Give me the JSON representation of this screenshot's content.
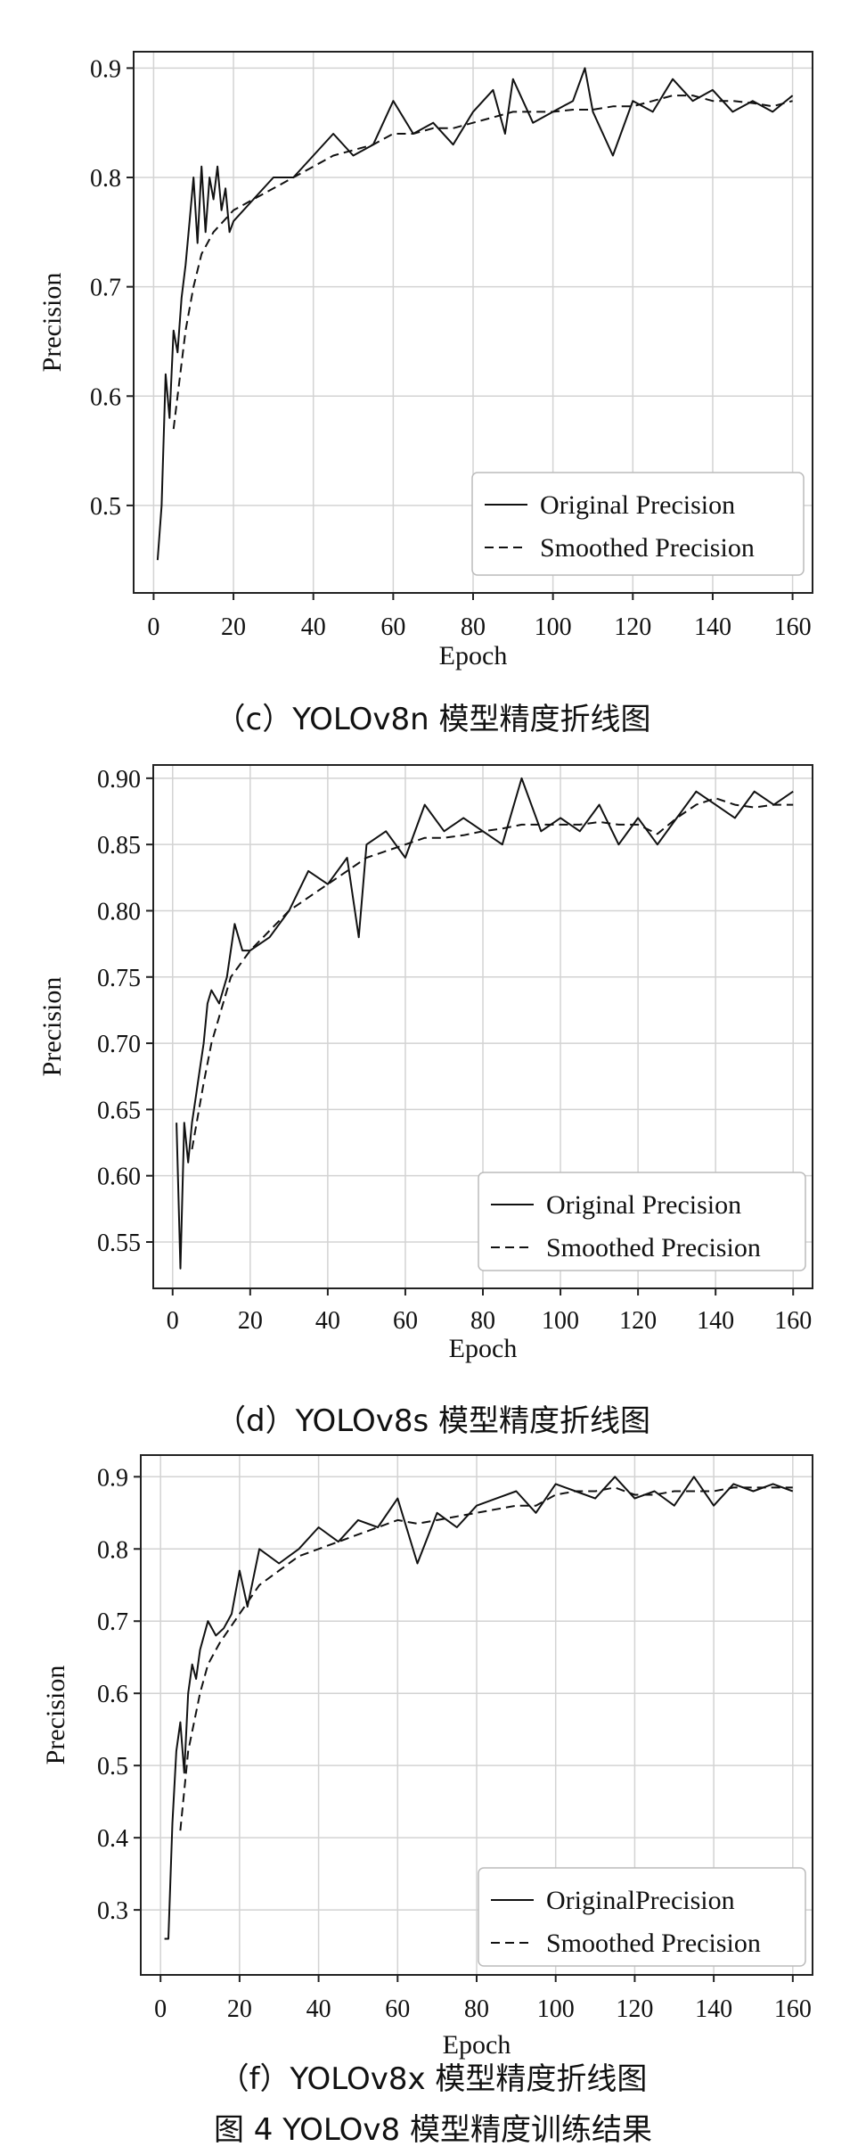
{
  "figure_caption": "图 4   YOLOv8 模型精度训练结果",
  "chart_data": [
    {
      "type": "line",
      "caption": "（c）YOLOv8n 模型精度折线图",
      "xlabel": "Epoch",
      "ylabel": "Precision",
      "xlim": [
        -5,
        165
      ],
      "ylim": [
        0.42,
        0.915
      ],
      "xticks": [
        0,
        20,
        40,
        60,
        80,
        100,
        120,
        140,
        160
      ],
      "yticks": [
        0.5,
        0.6,
        0.7,
        0.8,
        0.9
      ],
      "ytick_labels": [
        "0.5",
        "0.6",
        "0.7",
        "0.8",
        "0.9"
      ],
      "grid": true,
      "legend_position": "lower-right",
      "series": [
        {
          "name": "Original Precision",
          "style": "solid",
          "x": [
            1,
            2,
            3,
            4,
            5,
            6,
            7,
            8,
            9,
            10,
            11,
            12,
            13,
            14,
            15,
            16,
            17,
            18,
            19,
            20,
            25,
            30,
            35,
            40,
            45,
            50,
            55,
            60,
            65,
            70,
            75,
            80,
            85,
            88,
            90,
            95,
            100,
            105,
            108,
            110,
            115,
            120,
            125,
            130,
            135,
            140,
            145,
            150,
            155,
            160
          ],
          "y": [
            0.45,
            0.5,
            0.62,
            0.58,
            0.66,
            0.64,
            0.69,
            0.72,
            0.76,
            0.8,
            0.74,
            0.81,
            0.75,
            0.8,
            0.78,
            0.81,
            0.77,
            0.79,
            0.75,
            0.76,
            0.78,
            0.8,
            0.8,
            0.82,
            0.84,
            0.82,
            0.83,
            0.87,
            0.84,
            0.85,
            0.83,
            0.86,
            0.88,
            0.84,
            0.89,
            0.85,
            0.86,
            0.87,
            0.9,
            0.86,
            0.82,
            0.87,
            0.86,
            0.89,
            0.87,
            0.88,
            0.86,
            0.87,
            0.86,
            0.875
          ]
        },
        {
          "name": "Smoothed Precision",
          "style": "dashed",
          "x": [
            5,
            8,
            10,
            12,
            15,
            20,
            25,
            30,
            35,
            40,
            45,
            50,
            55,
            60,
            65,
            70,
            75,
            80,
            85,
            90,
            95,
            100,
            105,
            110,
            115,
            120,
            125,
            130,
            135,
            140,
            145,
            150,
            155,
            160
          ],
          "y": [
            0.57,
            0.66,
            0.7,
            0.73,
            0.75,
            0.77,
            0.78,
            0.79,
            0.8,
            0.81,
            0.82,
            0.825,
            0.83,
            0.84,
            0.84,
            0.845,
            0.845,
            0.85,
            0.855,
            0.86,
            0.86,
            0.86,
            0.862,
            0.862,
            0.865,
            0.865,
            0.87,
            0.875,
            0.875,
            0.87,
            0.87,
            0.868,
            0.865,
            0.87
          ]
        }
      ]
    },
    {
      "type": "line",
      "caption": "（d）YOLOv8s 模型精度折线图",
      "xlabel": "Epoch",
      "ylabel": "Precision",
      "xlim": [
        -5,
        165
      ],
      "ylim": [
        0.515,
        0.91
      ],
      "xticks": [
        0,
        20,
        40,
        60,
        80,
        100,
        120,
        140,
        160
      ],
      "yticks": [
        0.55,
        0.6,
        0.65,
        0.7,
        0.75,
        0.8,
        0.85,
        0.9
      ],
      "ytick_labels": [
        "0.55",
        "0.60",
        "0.65",
        "0.70",
        "0.75",
        "0.80",
        "0.85",
        "0.90"
      ],
      "grid": true,
      "legend_position": "lower-right",
      "series": [
        {
          "name": "Original Precision",
          "style": "solid",
          "x": [
            1,
            2,
            3,
            4,
            5,
            6,
            7,
            8,
            9,
            10,
            12,
            14,
            16,
            18,
            20,
            25,
            30,
            35,
            40,
            45,
            48,
            50,
            55,
            60,
            65,
            70,
            75,
            80,
            85,
            90,
            95,
            100,
            105,
            110,
            115,
            120,
            125,
            130,
            135,
            140,
            145,
            150,
            155,
            160
          ],
          "y": [
            0.64,
            0.53,
            0.64,
            0.61,
            0.64,
            0.66,
            0.68,
            0.7,
            0.73,
            0.74,
            0.73,
            0.75,
            0.79,
            0.77,
            0.77,
            0.78,
            0.8,
            0.83,
            0.82,
            0.84,
            0.78,
            0.85,
            0.86,
            0.84,
            0.88,
            0.86,
            0.87,
            0.86,
            0.85,
            0.9,
            0.86,
            0.87,
            0.86,
            0.88,
            0.85,
            0.87,
            0.85,
            0.87,
            0.89,
            0.88,
            0.87,
            0.89,
            0.88,
            0.89
          ]
        },
        {
          "name": "Smoothed Precision",
          "style": "dashed",
          "x": [
            5,
            8,
            10,
            12,
            15,
            20,
            25,
            30,
            35,
            40,
            45,
            50,
            55,
            60,
            65,
            70,
            75,
            80,
            85,
            90,
            95,
            100,
            105,
            110,
            115,
            120,
            125,
            130,
            135,
            140,
            145,
            150,
            155,
            160
          ],
          "y": [
            0.62,
            0.67,
            0.7,
            0.72,
            0.75,
            0.77,
            0.785,
            0.8,
            0.81,
            0.82,
            0.83,
            0.84,
            0.845,
            0.85,
            0.855,
            0.855,
            0.857,
            0.86,
            0.862,
            0.865,
            0.865,
            0.865,
            0.865,
            0.867,
            0.865,
            0.865,
            0.858,
            0.87,
            0.88,
            0.885,
            0.88,
            0.878,
            0.88,
            0.88
          ]
        }
      ]
    },
    {
      "type": "line",
      "caption": "（f）YOLOv8x 模型精度折线图",
      "xlabel": "Epoch",
      "ylabel": "Precision",
      "xlim": [
        -5,
        165
      ],
      "ylim": [
        0.21,
        0.93
      ],
      "xticks": [
        0,
        20,
        40,
        60,
        80,
        100,
        120,
        140,
        160
      ],
      "yticks": [
        0.3,
        0.4,
        0.5,
        0.6,
        0.7,
        0.8,
        0.9
      ],
      "ytick_labels": [
        "0.3",
        "0.4",
        "0.5",
        "0.6",
        "0.7",
        "0.8",
        "0.9"
      ],
      "grid": true,
      "legend_position": "lower-right",
      "series": [
        {
          "name": "OriginalPrecision",
          "style": "solid",
          "x": [
            1,
            2,
            3,
            4,
            5,
            6,
            7,
            8,
            9,
            10,
            12,
            14,
            16,
            18,
            20,
            22,
            25,
            30,
            35,
            40,
            45,
            50,
            55,
            60,
            65,
            70,
            75,
            80,
            85,
            90,
            95,
            100,
            105,
            110,
            115,
            120,
            125,
            130,
            135,
            140,
            145,
            150,
            155,
            160
          ],
          "y": [
            0.26,
            0.26,
            0.42,
            0.52,
            0.56,
            0.49,
            0.6,
            0.64,
            0.62,
            0.66,
            0.7,
            0.68,
            0.69,
            0.71,
            0.77,
            0.72,
            0.8,
            0.78,
            0.8,
            0.83,
            0.81,
            0.84,
            0.83,
            0.87,
            0.78,
            0.85,
            0.83,
            0.86,
            0.87,
            0.88,
            0.85,
            0.89,
            0.88,
            0.87,
            0.9,
            0.87,
            0.88,
            0.86,
            0.9,
            0.86,
            0.89,
            0.88,
            0.89,
            0.88
          ]
        },
        {
          "name": "Smoothed Precision",
          "style": "dashed",
          "x": [
            5,
            7,
            10,
            12,
            15,
            20,
            25,
            30,
            35,
            40,
            45,
            50,
            55,
            60,
            65,
            70,
            75,
            80,
            85,
            90,
            95,
            100,
            105,
            110,
            115,
            120,
            125,
            130,
            135,
            140,
            145,
            150,
            155,
            160
          ],
          "y": [
            0.41,
            0.52,
            0.6,
            0.64,
            0.67,
            0.71,
            0.75,
            0.77,
            0.79,
            0.8,
            0.81,
            0.82,
            0.83,
            0.84,
            0.835,
            0.84,
            0.845,
            0.85,
            0.855,
            0.86,
            0.86,
            0.875,
            0.88,
            0.88,
            0.885,
            0.875,
            0.875,
            0.88,
            0.88,
            0.88,
            0.885,
            0.885,
            0.885,
            0.885
          ]
        }
      ]
    }
  ]
}
